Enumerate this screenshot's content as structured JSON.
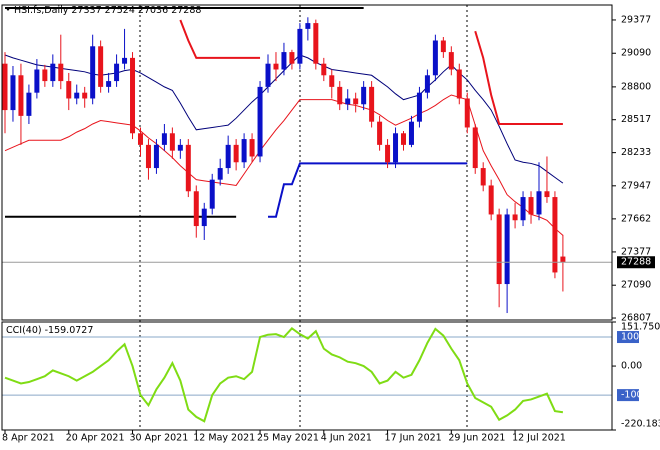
{
  "chart_data": [
    {
      "type": "candlestick",
      "symbol": "HSI.fs,Daily",
      "open": [
        29000,
        28600,
        28900,
        28550,
        28750,
        28950,
        28850,
        29000,
        28850,
        28700,
        28750,
        28700,
        29150,
        28800,
        28850,
        29000,
        29050,
        28400,
        28300,
        28100,
        28300,
        28400,
        28250,
        28300,
        27900,
        27600,
        27750,
        28000,
        28100,
        28300,
        28150,
        28350,
        28200,
        28800,
        29000,
        28950,
        29100,
        29000,
        29300,
        29350,
        29000,
        28900,
        28800,
        28650,
        28700,
        28650,
        28800,
        28500,
        28300,
        28150,
        28400,
        28300,
        28500,
        28750,
        28900,
        29200,
        29100,
        28950,
        28700,
        28450,
        28100,
        27950,
        27700,
        27100,
        27700,
        27650,
        27850,
        27700,
        27900,
        27850,
        27337
      ],
      "high": [
        29100,
        28980,
        29000,
        28820,
        29040,
        28990,
        29080,
        29250,
        28920,
        28820,
        28800,
        29250,
        29200,
        28920,
        29080,
        29300,
        29100,
        28450,
        28350,
        28350,
        28480,
        28450,
        28350,
        28350,
        27950,
        27800,
        28050,
        28180,
        28380,
        28350,
        28400,
        28400,
        28850,
        29080,
        29100,
        29180,
        29120,
        29350,
        29400,
        29380,
        29050,
        28950,
        28850,
        28780,
        28750,
        28850,
        28850,
        28550,
        28350,
        28450,
        28420,
        28550,
        28800,
        28950,
        29250,
        29230,
        29150,
        29000,
        28750,
        28480,
        28150,
        28000,
        27750,
        27750,
        27800,
        27900,
        27900,
        28150,
        28200,
        27900,
        27524
      ],
      "low": [
        28400,
        28500,
        28300,
        28480,
        28700,
        28800,
        28800,
        28780,
        28600,
        28650,
        28620,
        28650,
        28750,
        28750,
        28800,
        28950,
        28350,
        28200,
        28000,
        28050,
        28250,
        28180,
        28180,
        27850,
        27500,
        27480,
        27700,
        27950,
        28050,
        28080,
        28100,
        28150,
        28150,
        28750,
        28850,
        28900,
        28950,
        28950,
        29200,
        28950,
        28850,
        28700,
        28600,
        28600,
        28580,
        28600,
        28450,
        28250,
        28100,
        28100,
        28250,
        28280,
        28450,
        28700,
        28850,
        29050,
        28900,
        28650,
        28400,
        28050,
        27900,
        27650,
        26900,
        26850,
        27580,
        27600,
        27620,
        27650,
        27800,
        27150,
        27036
      ],
      "close": [
        28600,
        28900,
        28550,
        28750,
        28950,
        28850,
        29000,
        28850,
        28700,
        28750,
        28700,
        29150,
        28800,
        28850,
        29000,
        29050,
        28400,
        28300,
        28100,
        28300,
        28400,
        28250,
        28300,
        27900,
        27600,
        27750,
        28000,
        28100,
        28300,
        28150,
        28350,
        28200,
        28800,
        29000,
        28950,
        29100,
        29000,
        29300,
        29350,
        29000,
        28900,
        28800,
        28650,
        28700,
        28650,
        28800,
        28500,
        28300,
        28150,
        28400,
        28300,
        28500,
        28750,
        28900,
        29200,
        29100,
        28950,
        28700,
        28450,
        28100,
        27950,
        27700,
        27100,
        27700,
        27650,
        27850,
        27700,
        27900,
        27850,
        27200,
        27288
      ],
      "up_color": "#0a10c8",
      "down_color": "#e8141c",
      "ylim": [
        26790,
        29506
      ],
      "yticks": [
        29377,
        29090,
        28800,
        28517,
        28233,
        27947,
        27662,
        27377,
        27090,
        26807
      ],
      "overlays": [
        {
          "color": "#00007a",
          "width": 1,
          "values": [
            29075,
            29050,
            29030,
            29010,
            28990,
            28980,
            28970,
            28960,
            28950,
            28940,
            28930,
            28910,
            28900,
            28910,
            28920,
            28940,
            28950,
            28920,
            28880,
            28840,
            28800,
            28770,
            28660,
            28540,
            28430,
            28440,
            28450,
            28460,
            28470,
            28530,
            28600,
            28670,
            28730,
            28800,
            28870,
            28940,
            29010,
            29075,
            29050,
            29010,
            28980,
            28950,
            28940,
            28930,
            28920,
            28910,
            28900,
            28850,
            28800,
            28740,
            28690,
            28710,
            28730,
            28800,
            28860,
            28930,
            28990,
            28920,
            28860,
            28770,
            28690,
            28600,
            28460,
            28310,
            28170,
            28150,
            28140,
            28120,
            28070,
            28020,
            27970
          ]
        },
        {
          "color": "#e8141c",
          "width": 1,
          "values": [
            28250,
            28280,
            28310,
            28340,
            28340,
            28340,
            28340,
            28340,
            28370,
            28410,
            28440,
            28480,
            28510,
            28500,
            28490,
            28480,
            28470,
            28420,
            28360,
            28310,
            28250,
            28190,
            28120,
            28060,
            28000,
            27990,
            27980,
            27970,
            27960,
            27950,
            28050,
            28150,
            28250,
            28340,
            28430,
            28510,
            28600,
            28690,
            28690,
            28690,
            28690,
            28690,
            28670,
            28650,
            28640,
            28620,
            28600,
            28560,
            28510,
            28470,
            28500,
            28530,
            28570,
            28600,
            28640,
            28690,
            28730,
            28710,
            28690,
            28470,
            28250,
            28120,
            28000,
            27870,
            27810,
            27760,
            27700,
            27680,
            27650,
            27580,
            27520
          ]
        },
        {
          "color": "#e8141c",
          "width": 2,
          "values": [
            null,
            null,
            null,
            null,
            null,
            null,
            null,
            null,
            null,
            null,
            null,
            null,
            null,
            null,
            null,
            null,
            null,
            null,
            null,
            null,
            null,
            null,
            29377,
            29200,
            29050,
            29050,
            29050,
            29050,
            29050,
            29050,
            29050,
            29050,
            29050,
            null,
            null,
            null,
            null,
            null,
            null,
            null,
            null,
            null,
            null,
            null,
            null,
            null,
            null,
            null,
            null,
            null,
            null,
            null,
            null,
            null,
            null,
            null,
            null,
            null,
            null,
            29280,
            29050,
            28730,
            28480,
            28480,
            28480,
            28480,
            28480,
            28480,
            28480,
            28480,
            28480
          ]
        },
        {
          "color": "#000000",
          "width": 2,
          "values": [
            29480,
            29480,
            29480,
            29480,
            29480,
            29480,
            29480,
            29480,
            29480,
            29480,
            29480,
            29480,
            29480,
            29480,
            29480,
            29480,
            29480,
            29480,
            29480,
            29480,
            29480,
            29480,
            29480,
            29480,
            29480,
            29480,
            29480,
            29480,
            29480,
            29480,
            29480,
            29480,
            29480,
            29480,
            29480,
            29480,
            29480,
            29480,
            29480,
            29480,
            29480,
            29480,
            29480,
            29480,
            29480,
            29480,
            null,
            null,
            null,
            null,
            null,
            null,
            null,
            null,
            null,
            null,
            null,
            null,
            null,
            null,
            null,
            null,
            null,
            null,
            null,
            null,
            null,
            null,
            null,
            null,
            null
          ]
        },
        {
          "color": "#000000",
          "width": 2,
          "values": [
            27680,
            27680,
            27680,
            27680,
            27680,
            27680,
            27680,
            27680,
            27680,
            27680,
            27680,
            27680,
            27680,
            27680,
            27680,
            27680,
            27680,
            27680,
            27680,
            27680,
            27680,
            27680,
            27680,
            27680,
            27680,
            27680,
            27680,
            27680,
            27680,
            27680,
            null,
            null,
            null,
            null,
            null,
            null,
            null,
            null,
            null,
            null,
            null,
            null,
            null,
            null,
            null,
            null,
            null,
            null,
            null,
            null,
            null,
            null,
            null,
            null,
            null,
            null,
            null,
            null,
            null,
            null,
            null,
            null,
            null,
            null,
            null,
            null,
            null,
            null,
            null,
            null,
            null
          ]
        },
        {
          "color": "#0a10c8",
          "width": 2,
          "values": [
            null,
            null,
            null,
            null,
            null,
            null,
            null,
            null,
            null,
            null,
            null,
            null,
            null,
            null,
            null,
            null,
            null,
            null,
            null,
            null,
            null,
            null,
            null,
            null,
            null,
            null,
            null,
            null,
            null,
            null,
            null,
            null,
            null,
            27680,
            27680,
            27960,
            27960,
            28140,
            28140,
            28140,
            28140,
            28140,
            28140,
            28140,
            28140,
            28140,
            28140,
            28140,
            28140,
            28140,
            28140,
            28140,
            28140,
            28140,
            28140,
            28140,
            28140,
            28140,
            28140,
            null,
            null,
            null,
            null,
            null,
            null,
            null,
            null,
            null,
            null,
            null,
            null
          ]
        }
      ]
    },
    {
      "type": "line",
      "title": "CCI(40)",
      "categories": [
        "8 Apr 2021",
        null,
        null,
        null,
        null,
        null,
        null,
        null,
        "20 Apr 2021",
        null,
        null,
        null,
        null,
        null,
        null,
        null,
        "30 Apr 2021",
        null,
        null,
        null,
        null,
        null,
        null,
        null,
        "12 May 2021",
        null,
        null,
        null,
        null,
        null,
        null,
        null,
        "25 May 2021",
        null,
        null,
        null,
        null,
        null,
        null,
        null,
        "4 Jun 2021",
        null,
        null,
        null,
        null,
        null,
        null,
        null,
        "17 Jun 2021",
        null,
        null,
        null,
        null,
        null,
        null,
        null,
        "29 Jun 2021",
        null,
        null,
        null,
        null,
        null,
        null,
        null,
        "12 Jul 2021",
        null,
        null,
        null,
        null,
        null,
        null
      ],
      "series": [
        {
          "color": "#7fdc14",
          "values": [
            -40,
            -50,
            -60,
            -55,
            -45,
            -35,
            -15,
            -25,
            -35,
            -50,
            -35,
            -20,
            0,
            20,
            50,
            75,
            0,
            -100,
            -135,
            -80,
            -40,
            10,
            -50,
            -150,
            -175,
            -190,
            -100,
            -60,
            -40,
            -35,
            -45,
            -20,
            100,
            108,
            110,
            100,
            130,
            110,
            95,
            120,
            60,
            40,
            30,
            15,
            10,
            0,
            -20,
            -60,
            -50,
            -20,
            -40,
            -30,
            20,
            80,
            128,
            105,
            60,
            20,
            -60,
            -110,
            -125,
            -140,
            -185,
            -170,
            -150,
            -120,
            -115,
            -105,
            -95,
            -155,
            -159.0727
          ]
        }
      ],
      "ylim": [
        -220.183,
        151.7509
      ],
      "yticks": [
        151.7509,
        100,
        {
          "value": 0,
          "label": "0.00"
        },
        -100,
        -220.183
      ]
    }
  ]
}
